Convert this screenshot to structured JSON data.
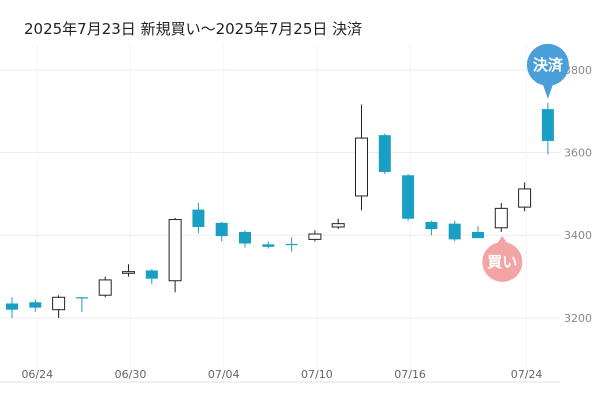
{
  "title": "2025年7月23日 新規買い～2025年7月25日 決済",
  "colors": {
    "down": "#1a9fc4",
    "up_fill": "#ffffff",
    "up_stroke": "#222222",
    "buy_marker": "#f3a5a5",
    "settle_marker": "#4a9fd8",
    "grid": "#ececec"
  },
  "markers": {
    "buy": "買い",
    "settle": "決済"
  },
  "chart_data": {
    "type": "candlestick",
    "y_ticks": [
      "3200",
      "3400",
      "3600",
      "3800"
    ],
    "x_ticks": [
      "06/24",
      "06/30",
      "07/04",
      "07/10",
      "07/16",
      "07/24"
    ],
    "ylim": [
      3050,
      3860
    ],
    "grid": true,
    "candles": [
      {
        "open": 3235,
        "high": 3250,
        "low": 3200,
        "close": 3220
      },
      {
        "open": 3238,
        "high": 3245,
        "low": 3215,
        "close": 3225
      },
      {
        "open": 3220,
        "high": 3255,
        "low": 3200,
        "close": 3250
      },
      {
        "open": 3250,
        "high": 3250,
        "low": 3215,
        "close": 3248
      },
      {
        "open": 3255,
        "high": 3300,
        "low": 3250,
        "close": 3292
      },
      {
        "open": 3308,
        "high": 3330,
        "low": 3300,
        "close": 3312
      },
      {
        "open": 3315,
        "high": 3318,
        "low": 3282,
        "close": 3295
      },
      {
        "open": 3290,
        "high": 3442,
        "low": 3262,
        "close": 3438
      },
      {
        "open": 3462,
        "high": 3478,
        "low": 3405,
        "close": 3420
      },
      {
        "open": 3430,
        "high": 3432,
        "low": 3385,
        "close": 3398
      },
      {
        "open": 3408,
        "high": 3412,
        "low": 3370,
        "close": 3380
      },
      {
        "open": 3378,
        "high": 3385,
        "low": 3368,
        "close": 3372
      },
      {
        "open": 3379,
        "high": 3395,
        "low": 3360,
        "close": 3378
      },
      {
        "open": 3390,
        "high": 3412,
        "low": 3385,
        "close": 3403
      },
      {
        "open": 3420,
        "high": 3440,
        "low": 3415,
        "close": 3428
      },
      {
        "open": 3495,
        "high": 3716,
        "low": 3460,
        "close": 3635
      },
      {
        "open": 3642,
        "high": 3646,
        "low": 3548,
        "close": 3553
      },
      {
        "open": 3545,
        "high": 3548,
        "low": 3435,
        "close": 3440
      },
      {
        "open": 3432,
        "high": 3435,
        "low": 3400,
        "close": 3415
      },
      {
        "open": 3428,
        "high": 3435,
        "low": 3385,
        "close": 3390
      },
      {
        "open": 3408,
        "high": 3422,
        "low": 3395,
        "close": 3393
      },
      {
        "open": 3418,
        "high": 3478,
        "low": 3408,
        "close": 3465
      },
      {
        "open": 3468,
        "high": 3528,
        "low": 3458,
        "close": 3512
      },
      {
        "open": 3705,
        "high": 3720,
        "low": 3595,
        "close": 3628
      }
    ]
  }
}
